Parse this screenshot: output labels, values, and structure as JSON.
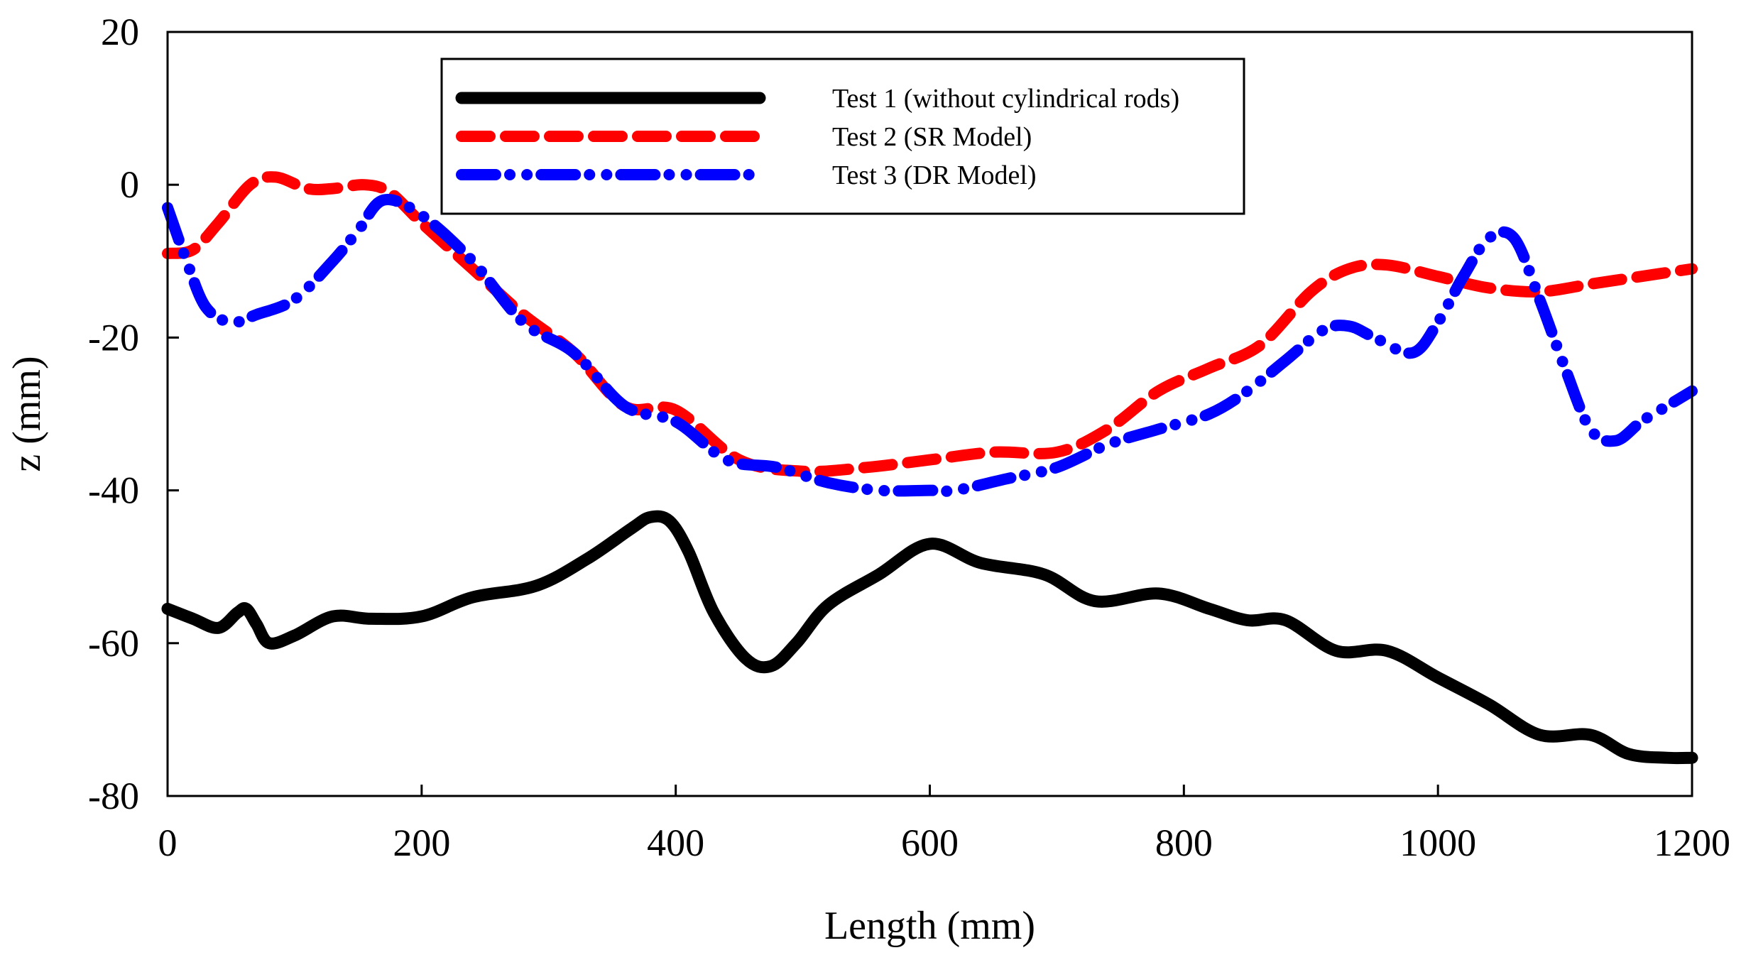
{
  "chart_data": {
    "type": "line",
    "xlabel": "Length (mm)",
    "ylabel": "z (mm)",
    "xlim": [
      0,
      1200
    ],
    "ylim": [
      -80,
      20
    ],
    "xticks": [
      0,
      200,
      400,
      600,
      800,
      1000,
      1200
    ],
    "yticks": [
      -80,
      -60,
      -40,
      -20,
      0,
      20
    ],
    "grid": false,
    "legend": "top",
    "series": [
      {
        "name": "Test 1 (without cylindrical rods)",
        "color": "#000000",
        "style": "solid",
        "x": [
          0,
          20,
          40,
          55,
          62,
          70,
          80,
          100,
          130,
          160,
          200,
          240,
          290,
          330,
          365,
          380,
          395,
          410,
          430,
          455,
          475,
          495,
          520,
          560,
          600,
          640,
          690,
          730,
          780,
          820,
          850,
          880,
          920,
          960,
          1000,
          1040,
          1080,
          1120,
          1150,
          1180,
          1200
        ],
        "y": [
          -55.5,
          -56.8,
          -58,
          -56,
          -55.5,
          -57.5,
          -60,
          -59,
          -56.5,
          -56.8,
          -56.5,
          -54,
          -52.5,
          -49,
          -45,
          -43.5,
          -44,
          -48,
          -56,
          -62,
          -63,
          -60,
          -55,
          -51,
          -47,
          -49.5,
          -51,
          -54.5,
          -53.5,
          -55.5,
          -57,
          -57,
          -61,
          -61,
          -64.5,
          -68,
          -72,
          -72,
          -74.5,
          -75,
          -75
        ]
      },
      {
        "name": "Test 2 (SR Model)",
        "color": "#ff0000",
        "style": "dashed",
        "x": [
          0,
          20,
          40,
          65,
          85,
          110,
          130,
          155,
          175,
          200,
          240,
          280,
          320,
          360,
          400,
          450,
          500,
          550,
          600,
          650,
          700,
          740,
          780,
          820,
          860,
          900,
          930,
          960,
          1000,
          1040,
          1080,
          1120,
          1160,
          1200
        ],
        "y": [
          -9,
          -8.5,
          -5,
          0,
          1,
          -0.5,
          -0.5,
          0,
          -1,
          -5,
          -11,
          -17,
          -22,
          -29,
          -29.5,
          -36,
          -37.5,
          -37,
          -36,
          -35,
          -35,
          -32,
          -27,
          -24,
          -21,
          -14,
          -11,
          -10.5,
          -12,
          -13.5,
          -14,
          -13,
          -12,
          -11
        ]
      },
      {
        "name": "Test 3 (DR Model)",
        "color": "#0000ff",
        "style": "dashdot",
        "x": [
          0,
          15,
          30,
          50,
          70,
          100,
          130,
          150,
          170,
          200,
          240,
          280,
          320,
          360,
          400,
          440,
          480,
          520,
          560,
          600,
          620,
          660,
          700,
          740,
          780,
          820,
          850,
          880,
          910,
          930,
          950,
          980,
          1000,
          1020,
          1040,
          1060,
          1080,
          1100,
          1120,
          1140,
          1160,
          1180,
          1200
        ],
        "y": [
          -3,
          -10,
          -16,
          -18,
          -17,
          -15,
          -10,
          -6,
          -2,
          -4,
          -10,
          -18,
          -22,
          -29,
          -31,
          -36,
          -37,
          -39,
          -40,
          -40,
          -40,
          -38.5,
          -37,
          -34,
          -32,
          -30,
          -27,
          -23,
          -19,
          -18.5,
          -20,
          -22,
          -18,
          -12,
          -7,
          -7,
          -15,
          -24,
          -32,
          -33.5,
          -31,
          -29,
          -27
        ]
      }
    ]
  }
}
